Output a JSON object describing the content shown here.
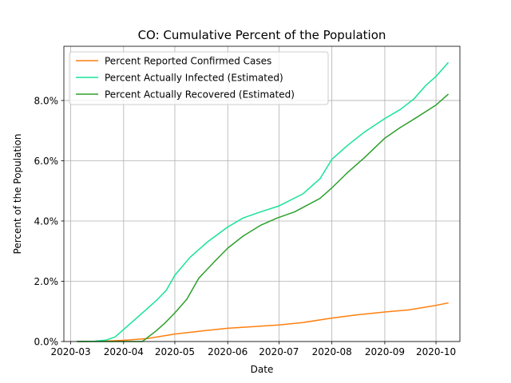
{
  "chart_data": {
    "type": "line",
    "title": "CO: Cumulative Percent of the Population",
    "xlabel": "Date",
    "ylabel": "Percent of the Population",
    "xlim": [
      "2020-02-26",
      "2020-10-15"
    ],
    "ylim": [
      0,
      9.8
    ],
    "x_ticks": [
      "2020-03",
      "2020-04",
      "2020-05",
      "2020-06",
      "2020-07",
      "2020-08",
      "2020-09",
      "2020-10"
    ],
    "y_ticks": [
      0,
      2,
      4,
      6,
      8
    ],
    "y_tick_labels": [
      "0.0%",
      "2.0%",
      "4.0%",
      "6.0%",
      "8.0%"
    ],
    "grid": true,
    "legend_position": "top-left",
    "series": [
      {
        "name": "Percent Reported Confirmed Cases",
        "color": "#ff7f0e",
        "points": [
          [
            "2020-03-05",
            0.0
          ],
          [
            "2020-03-20",
            0.01
          ],
          [
            "2020-04-01",
            0.04
          ],
          [
            "2020-04-15",
            0.1
          ],
          [
            "2020-05-01",
            0.25
          ],
          [
            "2020-05-15",
            0.34
          ],
          [
            "2020-06-01",
            0.44
          ],
          [
            "2020-06-15",
            0.49
          ],
          [
            "2020-07-01",
            0.55
          ],
          [
            "2020-07-15",
            0.63
          ],
          [
            "2020-08-01",
            0.78
          ],
          [
            "2020-08-15",
            0.88
          ],
          [
            "2020-09-01",
            0.98
          ],
          [
            "2020-09-15",
            1.05
          ],
          [
            "2020-10-01",
            1.2
          ],
          [
            "2020-10-08",
            1.28
          ]
        ]
      },
      {
        "name": "Percent Actually Infected (Estimated)",
        "color": "#17e397",
        "points": [
          [
            "2020-03-05",
            0.0
          ],
          [
            "2020-03-15",
            0.01
          ],
          [
            "2020-03-22",
            0.05
          ],
          [
            "2020-03-27",
            0.15
          ],
          [
            "2020-04-01",
            0.4
          ],
          [
            "2020-04-10",
            0.85
          ],
          [
            "2020-04-20",
            1.35
          ],
          [
            "2020-04-26",
            1.7
          ],
          [
            "2020-05-01",
            2.2
          ],
          [
            "2020-05-10",
            2.8
          ],
          [
            "2020-05-20",
            3.3
          ],
          [
            "2020-06-01",
            3.8
          ],
          [
            "2020-06-10",
            4.1
          ],
          [
            "2020-06-20",
            4.3
          ],
          [
            "2020-07-01",
            4.5
          ],
          [
            "2020-07-15",
            4.9
          ],
          [
            "2020-07-25",
            5.4
          ],
          [
            "2020-08-01",
            6.05
          ],
          [
            "2020-08-10",
            6.5
          ],
          [
            "2020-08-20",
            6.95
          ],
          [
            "2020-09-01",
            7.4
          ],
          [
            "2020-09-10",
            7.7
          ],
          [
            "2020-09-18",
            8.05
          ],
          [
            "2020-09-25",
            8.5
          ],
          [
            "2020-10-01",
            8.8
          ],
          [
            "2020-10-08",
            9.25
          ]
        ]
      },
      {
        "name": "Percent Actually Recovered (Estimated)",
        "color": "#2ca02c",
        "points": [
          [
            "2020-03-05",
            0.0
          ],
          [
            "2020-04-12",
            0.0
          ],
          [
            "2020-04-20",
            0.35
          ],
          [
            "2020-04-25",
            0.6
          ],
          [
            "2020-05-01",
            0.95
          ],
          [
            "2020-05-08",
            1.4
          ],
          [
            "2020-05-15",
            2.1
          ],
          [
            "2020-05-25",
            2.7
          ],
          [
            "2020-06-01",
            3.1
          ],
          [
            "2020-06-10",
            3.5
          ],
          [
            "2020-06-20",
            3.85
          ],
          [
            "2020-06-30",
            4.1
          ],
          [
            "2020-07-10",
            4.3
          ],
          [
            "2020-07-25",
            4.75
          ],
          [
            "2020-08-01",
            5.1
          ],
          [
            "2020-08-10",
            5.6
          ],
          [
            "2020-08-20",
            6.1
          ],
          [
            "2020-09-01",
            6.75
          ],
          [
            "2020-09-10",
            7.1
          ],
          [
            "2020-09-20",
            7.45
          ],
          [
            "2020-10-01",
            7.85
          ],
          [
            "2020-10-08",
            8.2
          ]
        ]
      }
    ]
  }
}
